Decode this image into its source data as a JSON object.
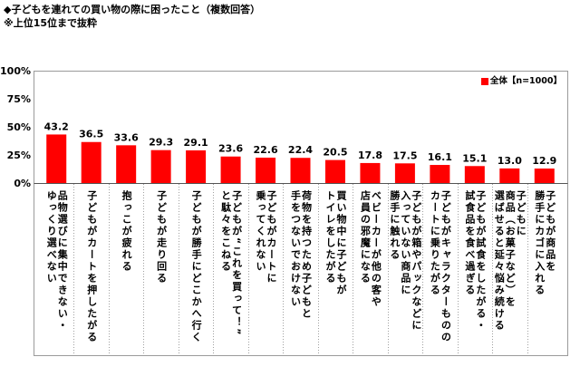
{
  "title": "◆子どもを連れての買い物の際に困ったこと（複数回答）",
  "note": "※上位15位まで抜粋",
  "colors": {
    "bar": "#ff0000"
  },
  "chart_data": {
    "type": "bar",
    "categories": [
      "品物選びに集中できない・\nゆっくり選べない",
      "子どもがカートを押したがる",
      "抱っこが疲れる",
      "子どもが走り回る",
      "子どもが勝手にどこかへ行く",
      "子どもが“これを買って！”\nと駄々をこねる",
      "子どもがカートに\n乗ってくれない",
      "荷物を持つため子どもと\n手をつないでおけない",
      "買い物中に子どもが\nトイレをしたがる",
      "ベビーカーが他の客や\n店員の邪魔になる",
      "子どもが箱やパックなどに\n入っていない商品に\n勝手に触れる",
      "子どもがキャラクターものの\nカートに乗りたがる",
      "子どもが試食をしたがる・\n試食品を食べ過ぎる",
      "子どもに\n商品（お菓子など）を\n選ばせると延々悩み続ける",
      "子どもが商品を\n勝手にカゴに入れる"
    ],
    "series": [
      {
        "name": "全体【n=1000】",
        "values": [
          43.2,
          36.5,
          33.6,
          29.3,
          29.1,
          23.6,
          22.6,
          22.4,
          20.5,
          17.8,
          17.5,
          16.1,
          15.1,
          13.0,
          12.9
        ]
      }
    ],
    "yticks": [
      100,
      75,
      50,
      25,
      0
    ],
    "yunit": "%",
    "ylim": [
      0,
      100
    ],
    "legend": "top-right",
    "grid": false
  }
}
